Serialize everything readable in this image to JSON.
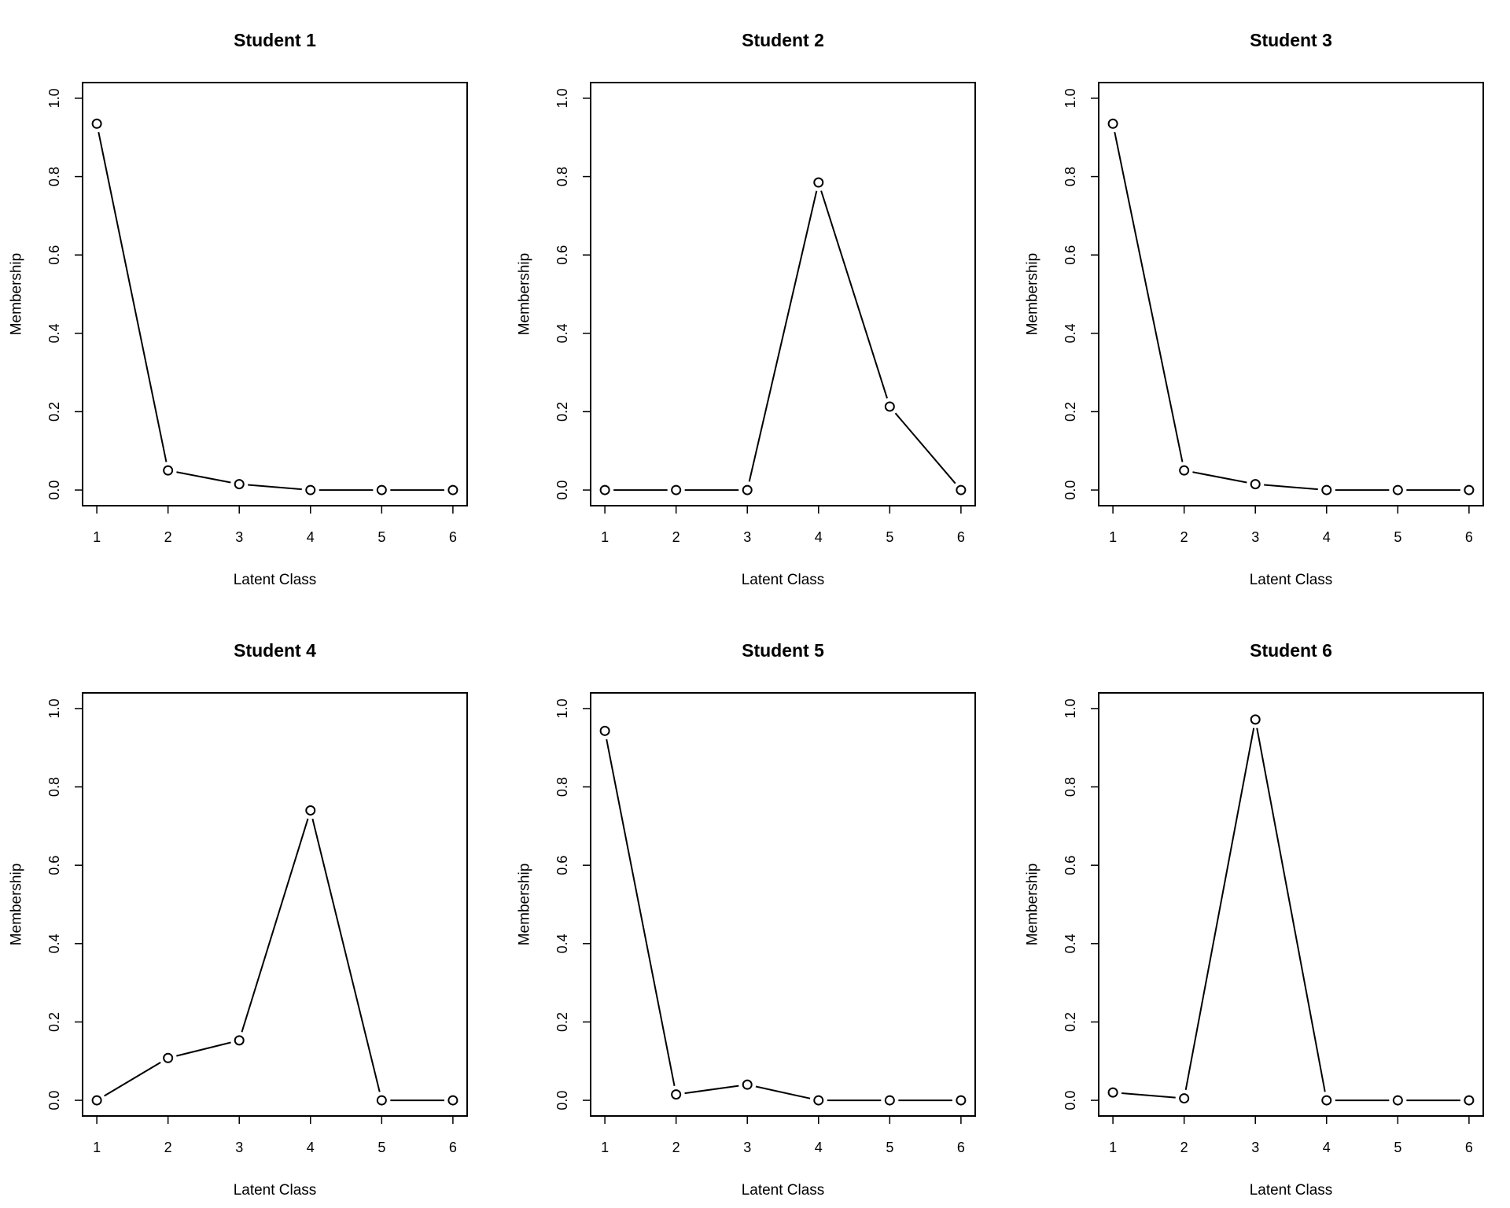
{
  "chart_data": [
    {
      "type": "line",
      "title": "Student 1",
      "xlabel": "Latent Class",
      "ylabel": "Membership",
      "x": [
        1,
        2,
        3,
        4,
        5,
        6
      ],
      "values": [
        0.935,
        0.05,
        0.015,
        0,
        0,
        0
      ],
      "xlim": [
        1,
        6
      ],
      "ylim": [
        0,
        1
      ],
      "xticks": [
        "1",
        "2",
        "3",
        "4",
        "5",
        "6"
      ],
      "yticks": [
        "0.0",
        "0.2",
        "0.4",
        "0.6",
        "0.8",
        "1.0"
      ],
      "grid": false
    },
    {
      "type": "line",
      "title": "Student 2",
      "xlabel": "Latent Class",
      "ylabel": "Membership",
      "x": [
        1,
        2,
        3,
        4,
        5,
        6
      ],
      "values": [
        0,
        0,
        0,
        0.785,
        0.213,
        0
      ],
      "xlim": [
        1,
        6
      ],
      "ylim": [
        0,
        1
      ],
      "xticks": [
        "1",
        "2",
        "3",
        "4",
        "5",
        "6"
      ],
      "yticks": [
        "0.0",
        "0.2",
        "0.4",
        "0.6",
        "0.8",
        "1.0"
      ],
      "grid": false
    },
    {
      "type": "line",
      "title": "Student 3",
      "xlabel": "Latent Class",
      "ylabel": "Membership",
      "x": [
        1,
        2,
        3,
        4,
        5,
        6
      ],
      "values": [
        0.935,
        0.05,
        0.015,
        0,
        0,
        0
      ],
      "xlim": [
        1,
        6
      ],
      "ylim": [
        0,
        1
      ],
      "xticks": [
        "1",
        "2",
        "3",
        "4",
        "5",
        "6"
      ],
      "yticks": [
        "0.0",
        "0.2",
        "0.4",
        "0.6",
        "0.8",
        "1.0"
      ],
      "grid": false
    },
    {
      "type": "line",
      "title": "Student 4",
      "xlabel": "Latent Class",
      "ylabel": "Membership",
      "x": [
        1,
        2,
        3,
        4,
        5,
        6
      ],
      "values": [
        0,
        0.108,
        0.153,
        0.74,
        0,
        0
      ],
      "xlim": [
        1,
        6
      ],
      "ylim": [
        0,
        1
      ],
      "xticks": [
        "1",
        "2",
        "3",
        "4",
        "5",
        "6"
      ],
      "yticks": [
        "0.0",
        "0.2",
        "0.4",
        "0.6",
        "0.8",
        "1.0"
      ],
      "grid": false
    },
    {
      "type": "line",
      "title": "Student 5",
      "xlabel": "Latent Class",
      "ylabel": "Membership",
      "x": [
        1,
        2,
        3,
        4,
        5,
        6
      ],
      "values": [
        0.943,
        0.015,
        0.04,
        0,
        0,
        0
      ],
      "xlim": [
        1,
        6
      ],
      "ylim": [
        0,
        1
      ],
      "xticks": [
        "1",
        "2",
        "3",
        "4",
        "5",
        "6"
      ],
      "yticks": [
        "0.0",
        "0.2",
        "0.4",
        "0.6",
        "0.8",
        "1.0"
      ],
      "grid": false
    },
    {
      "type": "line",
      "title": "Student 6",
      "xlabel": "Latent Class",
      "ylabel": "Membership",
      "x": [
        1,
        2,
        3,
        4,
        5,
        6
      ],
      "values": [
        0.02,
        0.005,
        0.972,
        0,
        0,
        0
      ],
      "xlim": [
        1,
        6
      ],
      "ylim": [
        0,
        1
      ],
      "xticks": [
        "1",
        "2",
        "3",
        "4",
        "5",
        "6"
      ],
      "yticks": [
        "0.0",
        "0.2",
        "0.4",
        "0.6",
        "0.8",
        "1.0"
      ],
      "grid": false
    }
  ]
}
